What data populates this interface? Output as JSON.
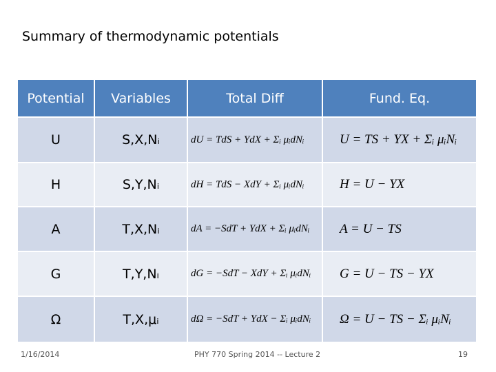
{
  "title": "Summary of thermodynamic potentials",
  "table": {
    "header": [
      "Potential",
      "Variables",
      "Total Diff",
      "Fund. Eq."
    ],
    "rows": [
      [
        "U",
        "S,X,Nᵢ",
        "dU = TdS + YdX + Σᵢ μᵢdNᵢ",
        "U = TS + YX + Σᵢ μᵢNᵢ"
      ],
      [
        "H",
        "S,Y,Nᵢ",
        "dH = TdS − XdY + Σᵢ μᵢdNᵢ",
        "H = U − YX"
      ],
      [
        "A",
        "T,X,Nᵢ",
        "dA = −SdT + YdX + Σᵢ μᵢdNᵢ",
        "A = U − TS"
      ],
      [
        "G",
        "T,Y,Nᵢ",
        "dG = −SdT − XdY + Σᵢ μᵢdNᵢ",
        "G = U − TS − YX"
      ],
      [
        "Ω",
        "T,X,μᵢ",
        "dΩ = −SdT + YdX − Σᵢ μᵢdNᵢ",
        "Ω = U − TS − Σᵢ μᵢNᵢ"
      ]
    ]
  },
  "footer": {
    "date": "1/16/2014",
    "course": "PHY 770  Spring 2014 -- Lecture 2",
    "page": "19"
  }
}
